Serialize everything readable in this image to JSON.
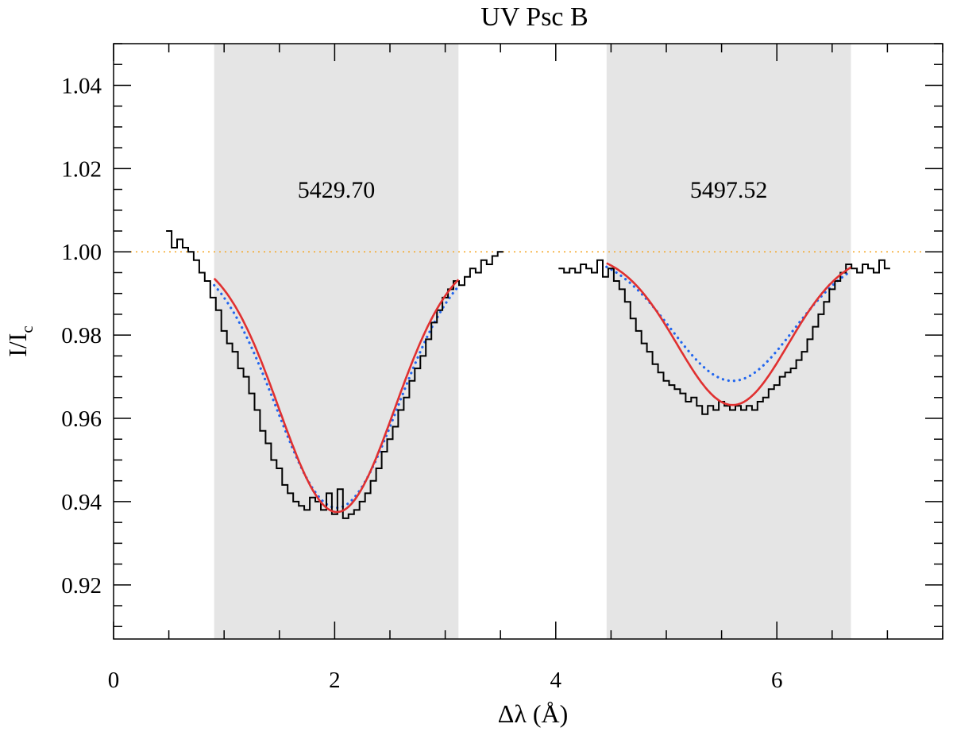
{
  "chart_data": {
    "type": "line",
    "title": "UV Psc B",
    "xlabel": "Δλ (Å)",
    "ylabel_main": "I/I",
    "ylabel_sub": "c",
    "xlim": [
      0,
      7.5
    ],
    "ylim": [
      0.907,
      1.05
    ],
    "x_ticks": [
      0,
      2,
      4,
      6
    ],
    "x_tick_labels": [
      "0",
      "2",
      "4",
      "6"
    ],
    "x_minor_step": 0.5,
    "y_ticks": [
      0.92,
      0.94,
      0.96,
      0.98,
      1.0,
      1.02,
      1.04
    ],
    "y_tick_labels": [
      "0.92",
      "0.94",
      "0.96",
      "0.98",
      "1.00",
      "1.02",
      "1.04"
    ],
    "y_minor_step": 0.005,
    "grid": false,
    "continuum_level": 1.0,
    "continuum_color": "#f5a623",
    "shaded_regions": [
      {
        "x_start": 0.91,
        "x_end": 3.12,
        "label": "5429.70",
        "label_y": 1.013
      },
      {
        "x_start": 4.46,
        "x_end": 6.67,
        "label": "5497.52",
        "label_y": 1.013
      }
    ],
    "shade_color": "#e5e5e5",
    "series": [
      {
        "style": "observed-histogram",
        "color": "#000000",
        "segments": [
          {
            "x": [
              0.5,
              0.55,
              0.6,
              0.65,
              0.7,
              0.75,
              0.8,
              0.85,
              0.9,
              0.95,
              1.0,
              1.05,
              1.1,
              1.15,
              1.2,
              1.25,
              1.3,
              1.35,
              1.4,
              1.45,
              1.5,
              1.55,
              1.6,
              1.65,
              1.7,
              1.75,
              1.8,
              1.85,
              1.9,
              1.95,
              2.0,
              2.05,
              2.1,
              2.15,
              2.2,
              2.25,
              2.3,
              2.35,
              2.4,
              2.45,
              2.5,
              2.55,
              2.6,
              2.65,
              2.7,
              2.75,
              2.8,
              2.85,
              2.9,
              2.95,
              3.0,
              3.05,
              3.1,
              3.15,
              3.2,
              3.25,
              3.3,
              3.35,
              3.4,
              3.45,
              3.5
            ],
            "y": [
              1.005,
              1.001,
              1.003,
              1.001,
              1.0,
              0.998,
              0.995,
              0.993,
              0.989,
              0.986,
              0.981,
              0.978,
              0.976,
              0.972,
              0.97,
              0.966,
              0.962,
              0.957,
              0.954,
              0.95,
              0.948,
              0.944,
              0.942,
              0.94,
              0.939,
              0.938,
              0.941,
              0.94,
              0.938,
              0.942,
              0.937,
              0.943,
              0.936,
              0.937,
              0.938,
              0.94,
              0.942,
              0.945,
              0.948,
              0.952,
              0.955,
              0.958,
              0.962,
              0.965,
              0.969,
              0.972,
              0.975,
              0.979,
              0.983,
              0.986,
              0.989,
              0.991,
              0.993,
              0.992,
              0.994,
              0.996,
              0.995,
              0.998,
              0.997,
              0.999,
              1.0
            ]
          },
          {
            "x": [
              4.05,
              4.1,
              4.15,
              4.2,
              4.25,
              4.3,
              4.35,
              4.4,
              4.45,
              4.5,
              4.55,
              4.6,
              4.65,
              4.7,
              4.75,
              4.8,
              4.85,
              4.9,
              4.95,
              5.0,
              5.05,
              5.1,
              5.15,
              5.2,
              5.25,
              5.3,
              5.35,
              5.4,
              5.45,
              5.5,
              5.55,
              5.6,
              5.65,
              5.7,
              5.75,
              5.8,
              5.85,
              5.9,
              5.95,
              6.0,
              6.05,
              6.1,
              6.15,
              6.2,
              6.25,
              6.3,
              6.35,
              6.4,
              6.45,
              6.5,
              6.55,
              6.6,
              6.65,
              6.7,
              6.75,
              6.8,
              6.85,
              6.9,
              6.95,
              7.0
            ],
            "y": [
              0.996,
              0.995,
              0.996,
              0.995,
              0.997,
              0.996,
              0.995,
              0.998,
              0.994,
              0.996,
              0.993,
              0.991,
              0.988,
              0.984,
              0.981,
              0.978,
              0.976,
              0.973,
              0.971,
              0.969,
              0.968,
              0.967,
              0.966,
              0.964,
              0.965,
              0.963,
              0.961,
              0.963,
              0.962,
              0.964,
              0.963,
              0.962,
              0.963,
              0.962,
              0.963,
              0.962,
              0.964,
              0.965,
              0.967,
              0.968,
              0.97,
              0.971,
              0.972,
              0.974,
              0.976,
              0.979,
              0.982,
              0.985,
              0.988,
              0.991,
              0.993,
              0.995,
              0.997,
              0.996,
              0.995,
              0.997,
              0.996,
              0.995,
              0.998,
              0.996
            ]
          }
        ]
      },
      {
        "style": "fit-solid",
        "color": "#e03030",
        "profiles": [
          {
            "x_start": 0.91,
            "x_end": 3.12,
            "center": 2.02,
            "depth": 0.0625,
            "sigma": 0.52
          },
          {
            "x_start": 4.46,
            "x_end": 6.67,
            "center": 5.6,
            "depth": 0.0368,
            "sigma": 0.5
          }
        ]
      },
      {
        "style": "model-dotted",
        "color": "#2266ee",
        "profiles": [
          {
            "x_start": 0.91,
            "x_end": 3.12,
            "center": 2.02,
            "depth": 0.0615,
            "sigma": 0.55
          },
          {
            "x_start": 4.46,
            "x_end": 6.67,
            "center": 5.6,
            "depth": 0.031,
            "sigma": 0.55
          }
        ]
      }
    ]
  }
}
